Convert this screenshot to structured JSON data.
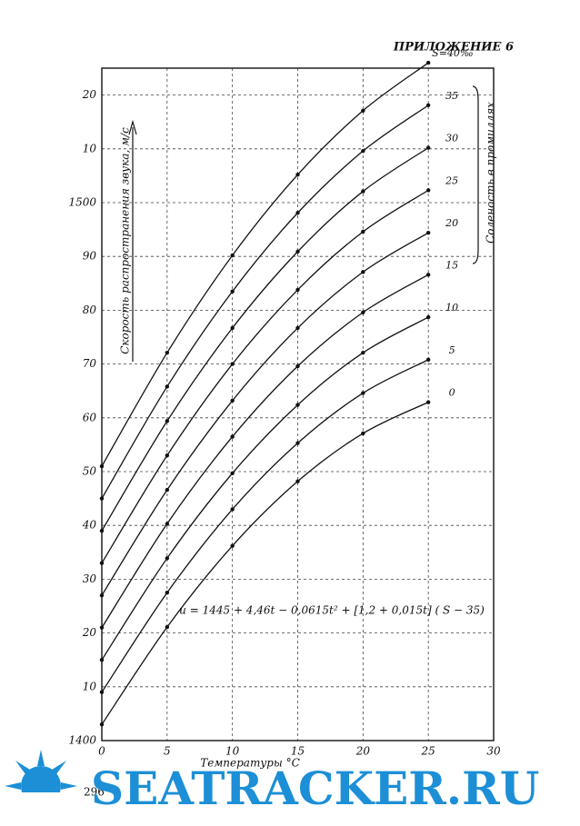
{
  "header": "ПРИЛОЖЕНИЕ 6",
  "page_number": "296",
  "watermark": "SEATRACKER.RU",
  "chart_data": {
    "type": "line",
    "ylabel": "Скорость распространения звука, м/с",
    "xlabel": "Температуры °С",
    "legend_title": "Соленость в промиллях",
    "annotation": "u = 1445 + 4,46t − 0,0615t² + [1,2 + 0,015t] ( S − 35)",
    "x": [
      0,
      5,
      10,
      15,
      20,
      25
    ],
    "xlim": [
      0,
      30
    ],
    "xticks": [
      0,
      5,
      10,
      15,
      20,
      25,
      30
    ],
    "ylim": [
      1400,
      1525
    ],
    "yticks": [
      1400,
      {
        "value": 1410,
        "label": "10"
      },
      {
        "value": 1420,
        "label": "20"
      },
      {
        "value": 1430,
        "label": "30"
      },
      {
        "value": 1440,
        "label": "40"
      },
      {
        "value": 1450,
        "label": "50"
      },
      {
        "value": 1460,
        "label": "60"
      },
      {
        "value": 1470,
        "label": "70"
      },
      {
        "value": 1480,
        "label": "80"
      },
      {
        "value": 1490,
        "label": "90"
      },
      1500,
      {
        "value": 1510,
        "label": "10"
      },
      {
        "value": 1520,
        "label": "20"
      }
    ],
    "grid": true,
    "color": "#111111",
    "series": [
      {
        "name": "S=40‰",
        "values": [
          1451,
          1472.1,
          1490.2,
          1505.2,
          1517.1,
          1526.0
        ]
      },
      {
        "name": "35",
        "values": [
          1445,
          1465.8,
          1483.5,
          1498.1,
          1509.6,
          1518.1
        ]
      },
      {
        "name": "30",
        "values": [
          1439,
          1459.4,
          1476.7,
          1490.9,
          1502.1,
          1510.2
        ]
      },
      {
        "name": "25",
        "values": [
          1433,
          1453.0,
          1470.0,
          1483.8,
          1494.6,
          1502.3
        ]
      },
      {
        "name": "20",
        "values": [
          1427,
          1446.6,
          1463.2,
          1476.7,
          1487.1,
          1494.4
        ]
      },
      {
        "name": "15",
        "values": [
          1421,
          1440.3,
          1456.5,
          1469.6,
          1479.6,
          1486.6
        ]
      },
      {
        "name": "10",
        "values": [
          1415,
          1433.9,
          1449.7,
          1462.4,
          1472.1,
          1478.7
        ]
      },
      {
        "name": "5",
        "values": [
          1409,
          1427.5,
          1443.0,
          1455.3,
          1464.6,
          1470.8
        ]
      },
      {
        "name": "0",
        "values": [
          1403,
          1421.1,
          1436.2,
          1448.2,
          1457.1,
          1462.9
        ]
      }
    ]
  }
}
